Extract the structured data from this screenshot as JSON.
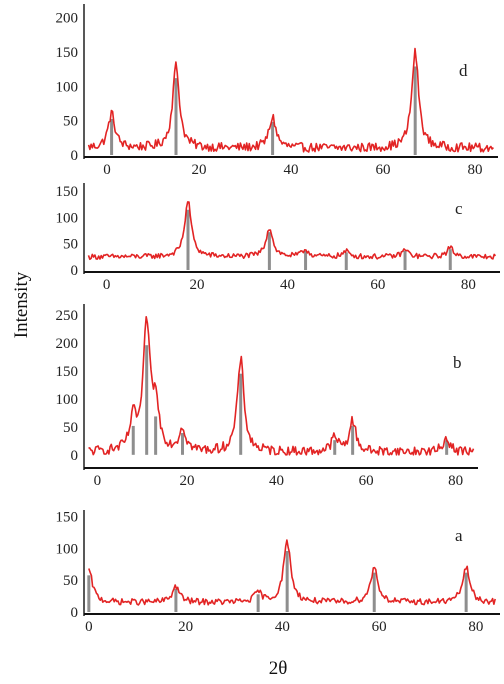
{
  "figure": {
    "ylabel": "Intensity",
    "xlabel": "2θ"
  },
  "colors": {
    "trace": "#e01818",
    "peak_bar": "#7a7a7a",
    "axis": "#111111"
  },
  "chart_data": [
    {
      "type": "line",
      "panel": "d",
      "xlim": [
        -5,
        85
      ],
      "ylim": [
        0,
        220
      ],
      "xticks": [
        {
          "v": 0,
          "label": "0"
        },
        {
          "v": 20,
          "label": "20"
        },
        {
          "v": 40,
          "label": "40"
        },
        {
          "v": 60,
          "label": "60"
        },
        {
          "v": 80,
          "label": "80"
        }
      ],
      "yticks": [
        {
          "v": 0,
          "label": "0"
        },
        {
          "v": 50,
          "label": "50"
        },
        {
          "v": 100,
          "label": "100"
        },
        {
          "v": 150,
          "label": "150"
        },
        {
          "v": 200,
          "label": "200"
        }
      ],
      "baseline": 10,
      "peaks": [
        {
          "x": 1,
          "y": 60
        },
        {
          "x": 15,
          "y": 130
        },
        {
          "x": 36,
          "y": 55
        },
        {
          "x": 67,
          "y": 150
        }
      ]
    },
    {
      "type": "line",
      "panel": "c",
      "xlim": [
        -5,
        87
      ],
      "ylim": [
        0,
        165
      ],
      "xticks": [
        {
          "v": 0,
          "label": "0"
        },
        {
          "v": 20,
          "label": "20"
        },
        {
          "v": 40,
          "label": "40"
        },
        {
          "v": 60,
          "label": "60"
        },
        {
          "v": 80,
          "label": "80"
        }
      ],
      "yticks": [
        {
          "v": 0,
          "label": "0"
        },
        {
          "v": 50,
          "label": "50"
        },
        {
          "v": 100,
          "label": "100"
        },
        {
          "v": 150,
          "label": "150"
        }
      ],
      "baseline": 25,
      "peaks": [
        {
          "x": 18,
          "y": 130
        },
        {
          "x": 36,
          "y": 80
        },
        {
          "x": 44,
          "y": 38
        },
        {
          "x": 53,
          "y": 35
        },
        {
          "x": 66,
          "y": 38
        },
        {
          "x": 76,
          "y": 42
        }
      ]
    },
    {
      "type": "line",
      "panel": "b",
      "xlim": [
        -3,
        85
      ],
      "ylim": [
        -20,
        270
      ],
      "xticks": [
        {
          "v": 0,
          "label": "0"
        },
        {
          "v": 20,
          "label": "20"
        },
        {
          "v": 40,
          "label": "40"
        },
        {
          "v": 60,
          "label": "60"
        },
        {
          "v": 80,
          "label": "80"
        }
      ],
      "yticks": [
        {
          "v": 0,
          "label": "0"
        },
        {
          "v": 50,
          "label": "50"
        },
        {
          "v": 100,
          "label": "100"
        },
        {
          "v": 150,
          "label": "150"
        },
        {
          "v": 200,
          "label": "200"
        },
        {
          "v": 250,
          "label": "250"
        }
      ],
      "baseline": 5,
      "peaks": [
        {
          "x": 8,
          "y": 60
        },
        {
          "x": 11,
          "y": 230
        },
        {
          "x": 13,
          "y": 80
        },
        {
          "x": 19,
          "y": 45
        },
        {
          "x": 32,
          "y": 170
        },
        {
          "x": 53,
          "y": 30
        },
        {
          "x": 57,
          "y": 60
        },
        {
          "x": 78,
          "y": 30
        }
      ]
    },
    {
      "type": "line",
      "panel": "a",
      "xlim": [
        -1,
        85
      ],
      "ylim": [
        0,
        160
      ],
      "xticks": [
        {
          "v": 0,
          "label": "0"
        },
        {
          "v": 20,
          "label": "20"
        },
        {
          "v": 40,
          "label": "40"
        },
        {
          "v": 60,
          "label": "60"
        },
        {
          "v": 80,
          "label": "80"
        }
      ],
      "yticks": [
        {
          "v": 0,
          "label": "0"
        },
        {
          "v": 50,
          "label": "50"
        },
        {
          "v": 100,
          "label": "100"
        },
        {
          "v": 150,
          "label": "150"
        }
      ],
      "baseline": 15,
      "peaks": [
        {
          "x": 0,
          "y": 65
        },
        {
          "x": 18,
          "y": 40
        },
        {
          "x": 35,
          "y": 30
        },
        {
          "x": 41,
          "y": 110
        },
        {
          "x": 59,
          "y": 70
        },
        {
          "x": 78,
          "y": 70
        }
      ]
    }
  ]
}
